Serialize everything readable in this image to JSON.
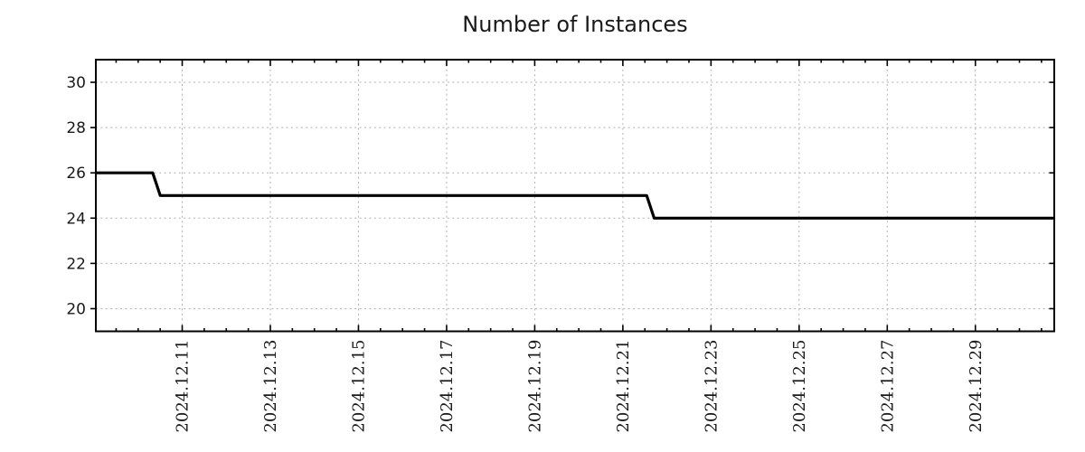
{
  "window": {
    "background": "#ffffff"
  },
  "chart_data": {
    "type": "line",
    "title": "Number of Instances",
    "xlabel": "",
    "ylabel": "",
    "legend_position": "none",
    "grid": {
      "visible": true,
      "color": "#b0b0b0",
      "style": "dotted"
    },
    "line": {
      "name": "instances",
      "color": "#000000",
      "width": 3.2
    },
    "x_epoch": "2024-12-09 00:00",
    "xlim_days": [
      0.04,
      21.79
    ],
    "ylim": [
      19,
      31
    ],
    "yticks": [
      20,
      22,
      24,
      26,
      28,
      30
    ],
    "x_minor_step_days": 0.5,
    "xticks": [
      {
        "day": 2,
        "label": "2024.12.11"
      },
      {
        "day": 4,
        "label": "2024.12.13"
      },
      {
        "day": 6,
        "label": "2024.12.15"
      },
      {
        "day": 8,
        "label": "2024.12.17"
      },
      {
        "day": 10,
        "label": "2024.12.19"
      },
      {
        "day": 12,
        "label": "2024.12.21"
      },
      {
        "day": 14,
        "label": "2024.12.23"
      },
      {
        "day": 16,
        "label": "2024.12.25"
      },
      {
        "day": 18,
        "label": "2024.12.27"
      },
      {
        "day": 20,
        "label": "2024.12.29"
      }
    ],
    "points": [
      {
        "date": "2024-12-09 01:00",
        "day": 0.04,
        "value": 26
      },
      {
        "date": "2024-12-10 08:00",
        "day": 1.33,
        "value": 26
      },
      {
        "date": "2024-12-10 12:00",
        "day": 1.5,
        "value": 25
      },
      {
        "date": "2024-12-21 13:00",
        "day": 12.54,
        "value": 25
      },
      {
        "date": "2024-12-21 17:00",
        "day": 12.71,
        "value": 24
      },
      {
        "date": "2024-12-30 19:00",
        "day": 21.79,
        "value": 24
      }
    ]
  }
}
